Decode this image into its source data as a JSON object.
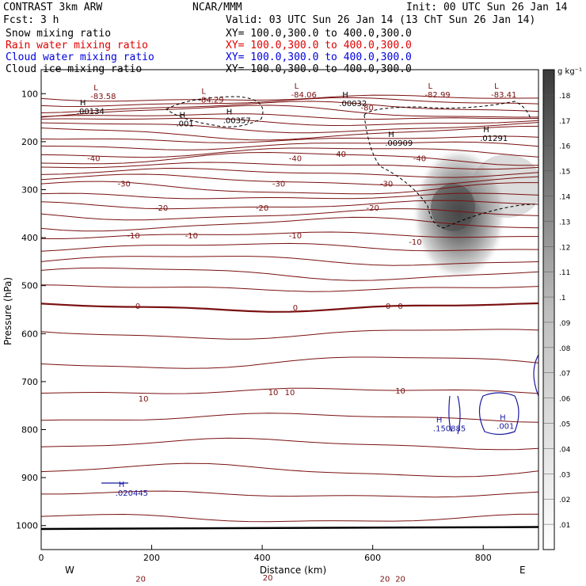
{
  "header": {
    "title": "CONTRAST  3km ARW",
    "center": "NCAR/MMM",
    "init": "Init: 00 UTC Sun 26 Jan 14",
    "fcst": "Fcst:    3 h",
    "valid": "Valid: 03 UTC Sun 26 Jan 14 (13 ChT Sun 26 Jan 14)"
  },
  "fields": [
    {
      "name": "Snow mixing ratio",
      "xy": "XY= 100.0,300.0 to 400.0,300.0",
      "color": "#000000"
    },
    {
      "name": "Rain water mixing ratio",
      "xy": "XY= 100.0,300.0 to 400.0,300.0",
      "color": "#ff0000"
    },
    {
      "name": "Cloud water mixing ratio",
      "xy": "XY= 100.0,300.0 to 400.0,300.0",
      "color": "#0000ff"
    },
    {
      "name": "Cloud ice mixing ratio",
      "xy": "XY= 100.0,300.0 to 400.0,300.0",
      "color": "#000000"
    }
  ],
  "colors": {
    "temp": "#7a1010",
    "cloud_water": "#1a1aa0",
    "ice": "#000000"
  },
  "chart_data": {
    "type": "contour",
    "xlabel": "Distance (km)",
    "ylabel": "Pressure (hPa)",
    "xlim": [
      0,
      900
    ],
    "ylim": [
      1050,
      50
    ],
    "xticks": [
      0,
      200,
      400,
      600,
      800
    ],
    "xtick_labels": [
      "0",
      "200",
      "400",
      "600",
      "800"
    ],
    "yticks": [
      100,
      200,
      300,
      400,
      500,
      600,
      700,
      800,
      900,
      1000
    ],
    "ytick_labels": [
      "100",
      "200",
      "300",
      "400",
      "500",
      "600",
      "700",
      "800",
      "900",
      "1000"
    ],
    "end_labels": {
      "west": "W",
      "east": "E"
    },
    "colorbar": {
      "unit": "g kg⁻¹",
      "levels": [
        ".01",
        ".02",
        ".03",
        ".04",
        ".05",
        ".06",
        ".07",
        ".08",
        ".09",
        ".1",
        ".11",
        ".12",
        ".13",
        ".14",
        ".15",
        ".16",
        ".17",
        ".18"
      ]
    },
    "snow_max": {
      "x": 750,
      "p": 345,
      "value_g_per_kg": 0.18
    },
    "temperature_labels": [
      {
        "text": "-80",
        "x": 590,
        "p": 128
      },
      {
        "text": "-40",
        "x": 95,
        "p": 234
      },
      {
        "text": "-40",
        "x": 460,
        "p": 234
      },
      {
        "text": "-40",
        "x": 685,
        "p": 234
      },
      {
        "text": "-40",
        "x": 540,
        "p": 225
      },
      {
        "text": "-30",
        "x": 150,
        "p": 287
      },
      {
        "text": "-30",
        "x": 430,
        "p": 287
      },
      {
        "text": "-30",
        "x": 625,
        "p": 287
      },
      {
        "text": "-20",
        "x": 218,
        "p": 337
      },
      {
        "text": "-20",
        "x": 400,
        "p": 337
      },
      {
        "text": "-20",
        "x": 600,
        "p": 337
      },
      {
        "text": "-10",
        "x": 167,
        "p": 395
      },
      {
        "text": "-10",
        "x": 272,
        "p": 395
      },
      {
        "text": "-10",
        "x": 460,
        "p": 395
      },
      {
        "text": "-10",
        "x": 677,
        "p": 408
      },
      {
        "text": "0",
        "x": 175,
        "p": 542
      },
      {
        "text": "0",
        "x": 460,
        "p": 545
      },
      {
        "text": "0",
        "x": 628,
        "p": 542
      },
      {
        "text": "0",
        "x": 650,
        "p": 542
      },
      {
        "text": "10",
        "x": 185,
        "p": 735
      },
      {
        "text": "10",
        "x": 420,
        "p": 722
      },
      {
        "text": "10",
        "x": 450,
        "p": 722
      },
      {
        "text": "10",
        "x": 650,
        "p": 718
      },
      {
        "text": "20",
        "x": 180,
        "p": 1110
      },
      {
        "text": "20",
        "x": 410,
        "p": 1108
      },
      {
        "text": "20",
        "x": 622,
        "p": 1110
      },
      {
        "text": "20",
        "x": 650,
        "p": 1110
      }
    ],
    "extrema": [
      {
        "type": "L",
        "value": "-83.58",
        "x": 95,
        "p": 93,
        "series": "temperature"
      },
      {
        "type": "L",
        "value": "-84.29",
        "x": 290,
        "p": 100,
        "series": "temperature"
      },
      {
        "type": "L",
        "value": "-84.06",
        "x": 458,
        "p": 90,
        "series": "temperature"
      },
      {
        "type": "L",
        "value": "-82.99",
        "x": 700,
        "p": 90,
        "series": "temperature"
      },
      {
        "type": "L",
        "value": "-83.41",
        "x": 820,
        "p": 90,
        "series": "temperature"
      },
      {
        "type": "H",
        "value": ".00134",
        "x": 70,
        "p": 124,
        "series": "cloud_ice"
      },
      {
        "type": "H",
        "value": ".001",
        "x": 250,
        "p": 150,
        "series": "cloud_ice"
      },
      {
        "type": "H",
        "value": ".00357",
        "x": 335,
        "p": 143,
        "series": "cloud_ice"
      },
      {
        "type": "H",
        "value": ".00032",
        "x": 545,
        "p": 108,
        "series": "cloud_ice"
      },
      {
        "type": "H",
        "value": ".00909",
        "x": 628,
        "p": 190,
        "series": "cloud_ice"
      },
      {
        "type": "H",
        "value": ".01291",
        "x": 800,
        "p": 180,
        "series": "cloud_ice"
      },
      {
        "type": "H",
        "value": ".150885",
        "x": 715,
        "p": 785,
        "series": "cloud_water"
      },
      {
        "type": "H",
        "value": ".001",
        "x": 830,
        "p": 780,
        "series": "cloud_water"
      },
      {
        "type": "H",
        "value": ".020445",
        "x": 140,
        "p": 920,
        "series": "cloud_water"
      }
    ]
  }
}
